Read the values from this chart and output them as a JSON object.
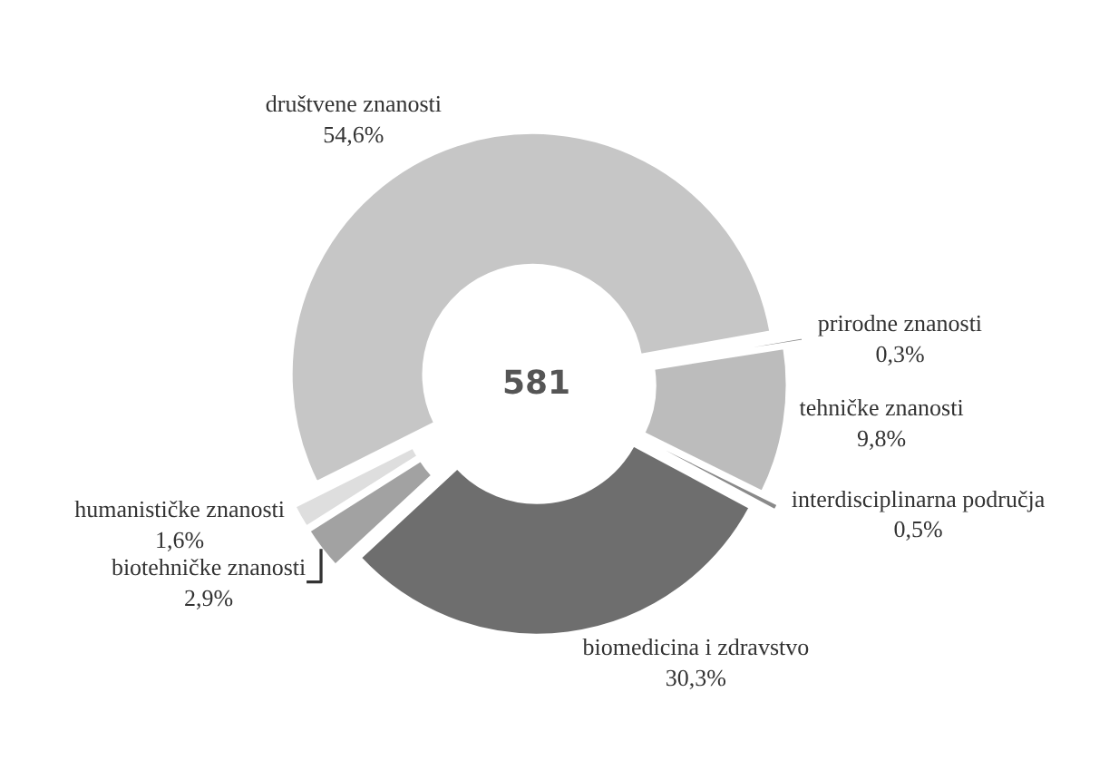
{
  "chart_data": {
    "type": "donut",
    "categories": [
      "društvene znanosti",
      "prirodne znanosti",
      "tehničke znanosti",
      "interdisciplinarna područja",
      "biomedicina i zdravstvo",
      "biotehničke znanosti",
      "humanističke znanosti"
    ],
    "values": [
      54.6,
      0.3,
      9.8,
      0.5,
      30.3,
      2.9,
      1.6
    ],
    "value_labels": [
      "54,6%",
      "0,3%",
      "9,8%",
      "0,5%",
      "30,3%",
      "2,9%",
      "1,6%"
    ],
    "colors": [
      "#c6c6c6",
      "#8e8e8e",
      "#bcbcbc",
      "#8a8a8a",
      "#6e6e6e",
      "#a2a2a2",
      "#dedede"
    ],
    "annotations": [
      "581"
    ],
    "legend": false
  }
}
